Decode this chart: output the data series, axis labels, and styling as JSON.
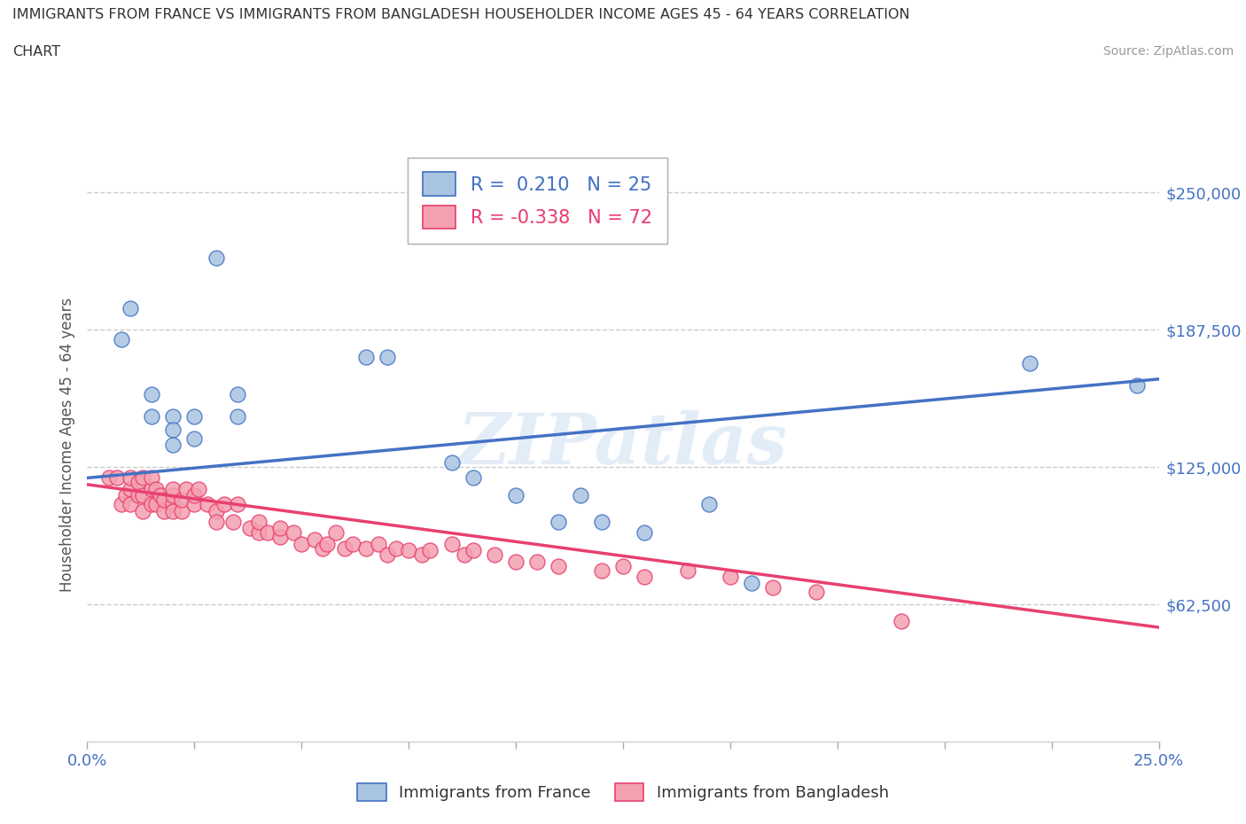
{
  "title_line1": "IMMIGRANTS FROM FRANCE VS IMMIGRANTS FROM BANGLADESH HOUSEHOLDER INCOME AGES 45 - 64 YEARS CORRELATION",
  "title_line2": "CHART",
  "source_text": "Source: ZipAtlas.com",
  "ylabel": "Householder Income Ages 45 - 64 years",
  "xlim": [
    0.0,
    0.25
  ],
  "ylim": [
    0,
    270000
  ],
  "xtick_labels_bottom": [
    "0.0%",
    "25.0%"
  ],
  "xtick_values_bottom": [
    0.0,
    0.25
  ],
  "xtick_values_minor": [
    0.025,
    0.05,
    0.075,
    0.1,
    0.125,
    0.15,
    0.175,
    0.2,
    0.225
  ],
  "ytick_labels": [
    "$62,500",
    "$125,000",
    "$187,500",
    "$250,000"
  ],
  "ytick_values": [
    62500,
    125000,
    187500,
    250000
  ],
  "france_color": "#a8c4e0",
  "bangladesh_color": "#f4a0b0",
  "france_line_color": "#4472c4",
  "bangladesh_line_color": "#e84070",
  "france_R": 0.21,
  "france_N": 25,
  "bangladesh_R": -0.338,
  "bangladesh_N": 72,
  "watermark_text": "ZIPatlas",
  "background_color": "#ffffff",
  "grid_color": "#cccccc",
  "france_scatter_x": [
    0.008,
    0.01,
    0.015,
    0.015,
    0.02,
    0.02,
    0.02,
    0.025,
    0.025,
    0.03,
    0.035,
    0.035,
    0.065,
    0.07,
    0.085,
    0.09,
    0.1,
    0.11,
    0.115,
    0.12,
    0.13,
    0.145,
    0.155,
    0.22,
    0.245
  ],
  "france_scatter_y": [
    183000,
    197000,
    158000,
    148000,
    148000,
    142000,
    135000,
    148000,
    138000,
    220000,
    158000,
    148000,
    175000,
    175000,
    127000,
    120000,
    112000,
    100000,
    112000,
    100000,
    95000,
    108000,
    72000,
    172000,
    162000
  ],
  "bangladesh_scatter_x": [
    0.005,
    0.007,
    0.008,
    0.009,
    0.01,
    0.01,
    0.01,
    0.012,
    0.012,
    0.013,
    0.013,
    0.013,
    0.015,
    0.015,
    0.015,
    0.016,
    0.016,
    0.017,
    0.018,
    0.018,
    0.02,
    0.02,
    0.02,
    0.02,
    0.022,
    0.022,
    0.023,
    0.025,
    0.025,
    0.026,
    0.028,
    0.03,
    0.03,
    0.032,
    0.034,
    0.035,
    0.038,
    0.04,
    0.04,
    0.042,
    0.045,
    0.045,
    0.048,
    0.05,
    0.053,
    0.055,
    0.056,
    0.058,
    0.06,
    0.062,
    0.065,
    0.068,
    0.07,
    0.072,
    0.075,
    0.078,
    0.08,
    0.085,
    0.088,
    0.09,
    0.095,
    0.1,
    0.105,
    0.11,
    0.12,
    0.125,
    0.13,
    0.14,
    0.15,
    0.16,
    0.17,
    0.19
  ],
  "bangladesh_scatter_y": [
    120000,
    120000,
    108000,
    112000,
    115000,
    120000,
    108000,
    112000,
    118000,
    105000,
    112000,
    120000,
    108000,
    115000,
    120000,
    108000,
    115000,
    112000,
    105000,
    110000,
    108000,
    112000,
    105000,
    115000,
    105000,
    110000,
    115000,
    108000,
    112000,
    115000,
    108000,
    105000,
    100000,
    108000,
    100000,
    108000,
    97000,
    95000,
    100000,
    95000,
    93000,
    97000,
    95000,
    90000,
    92000,
    88000,
    90000,
    95000,
    88000,
    90000,
    88000,
    90000,
    85000,
    88000,
    87000,
    85000,
    87000,
    90000,
    85000,
    87000,
    85000,
    82000,
    82000,
    80000,
    78000,
    80000,
    75000,
    78000,
    75000,
    70000,
    68000,
    55000
  ],
  "france_trendline_x": [
    0.0,
    0.25
  ],
  "france_trendline_y": [
    120000,
    165000
  ],
  "bangladesh_trendline_x": [
    0.0,
    0.25
  ],
  "bangladesh_trendline_y": [
    117000,
    52000
  ]
}
